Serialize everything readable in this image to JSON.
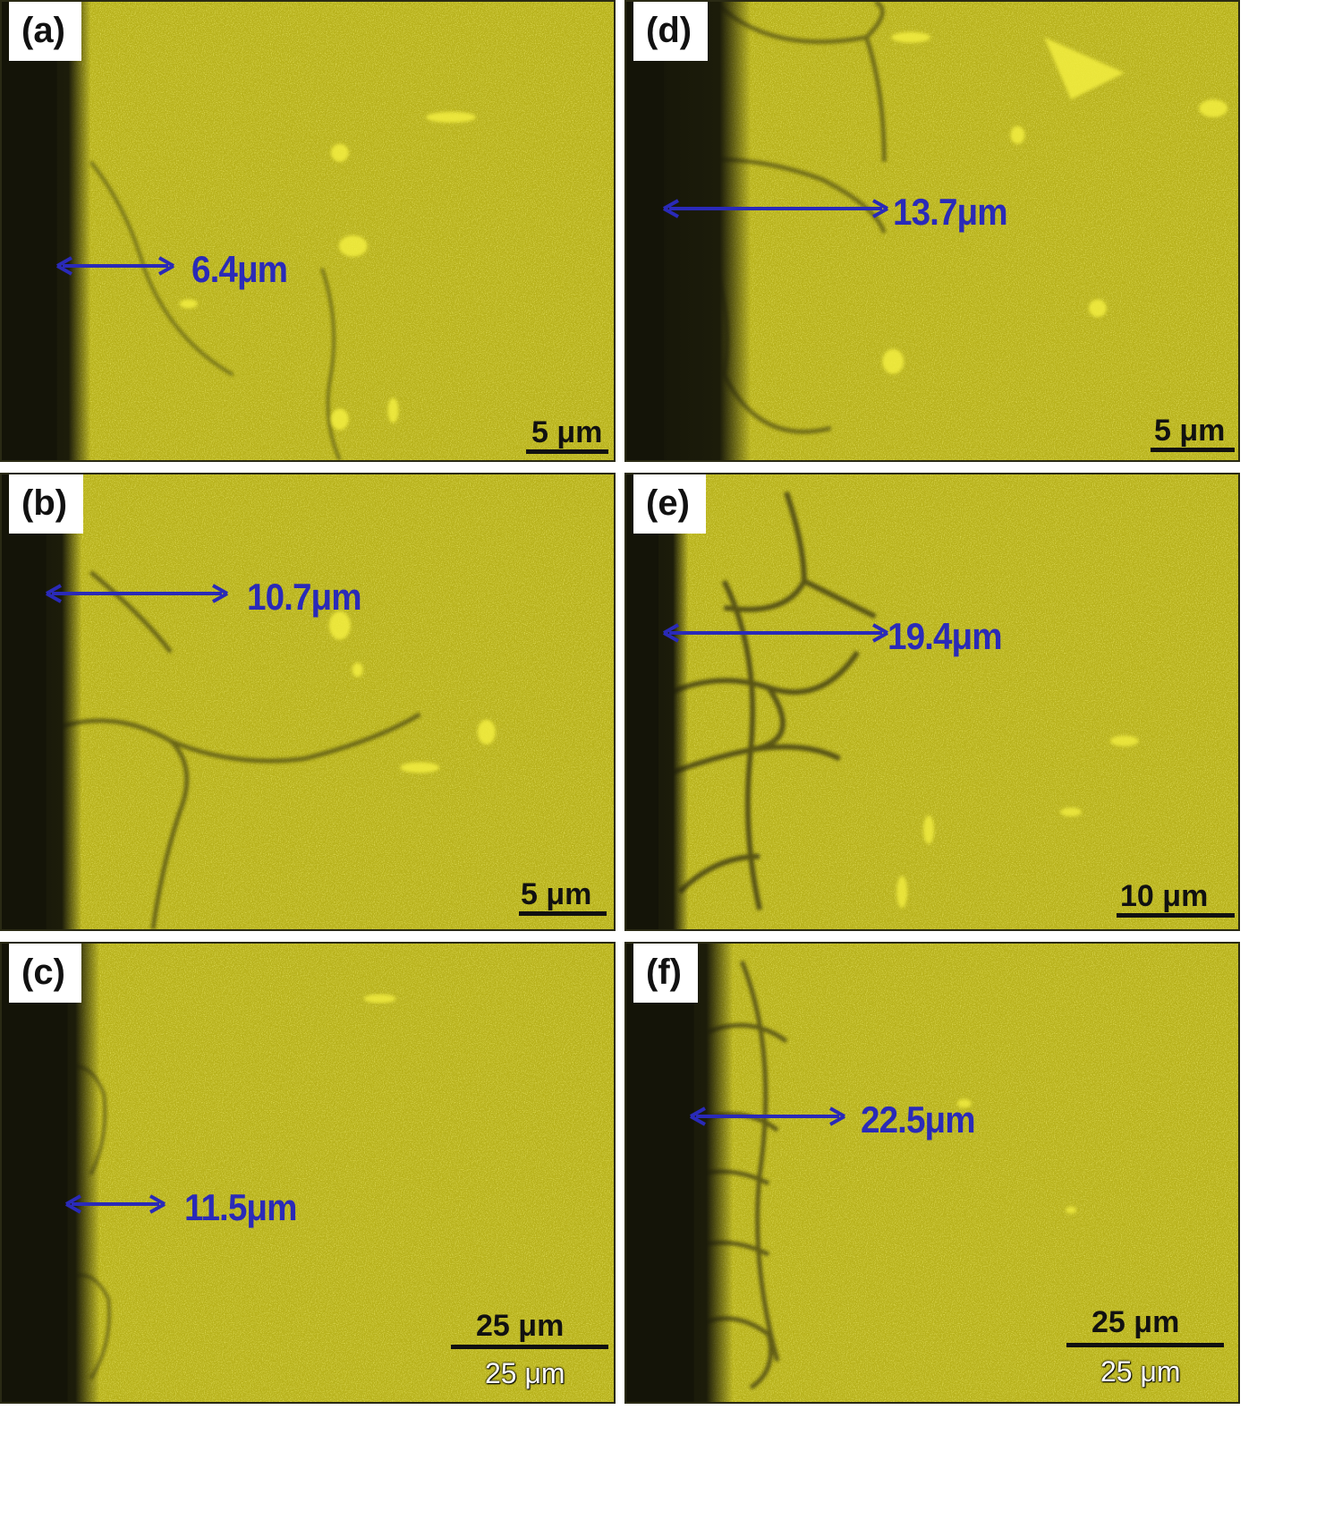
{
  "panels": [
    {
      "id": "a",
      "label": "(a)",
      "measurement": "6.4μm",
      "scale": "5 μm",
      "scale_sub": ""
    },
    {
      "id": "b",
      "label": "(b)",
      "measurement": "10.7μm",
      "scale": "5 μm",
      "scale_sub": ""
    },
    {
      "id": "c",
      "label": "(c)",
      "measurement": "11.5μm",
      "scale": "25 μm",
      "scale_sub": "25 μm"
    },
    {
      "id": "d",
      "label": "(d)",
      "measurement": "13.7μm",
      "scale": "5 μm",
      "scale_sub": ""
    },
    {
      "id": "e",
      "label": "(e)",
      "measurement": "19.4μm",
      "scale": "10 μm",
      "scale_sub": ""
    },
    {
      "id": "f",
      "label": "(f)",
      "measurement": "22.5μm",
      "scale": "25 μm",
      "scale_sub": "25 μm"
    }
  ],
  "colors": {
    "map_yellow": "#c9c320",
    "arrow_blue": "#2a2ab8",
    "edge_dark": "#161609"
  }
}
